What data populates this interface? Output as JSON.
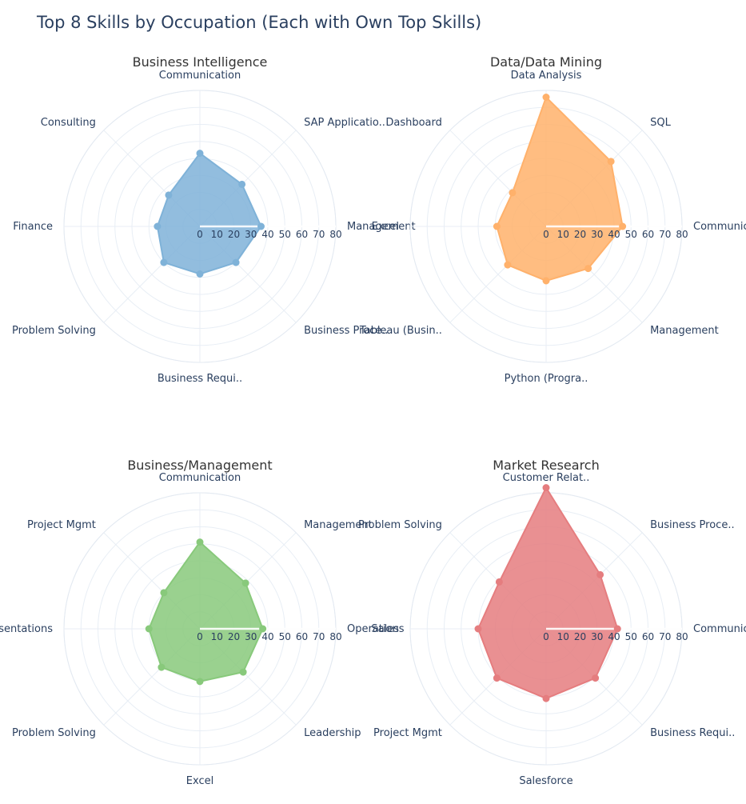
{
  "title": "Top 8 Skills by Occupation (Each with Own Top Skills)",
  "chart_data": [
    {
      "type": "radar",
      "title": "Business Intelligence",
      "color": "#7fb2d8",
      "categories": [
        "Communication",
        "SAP Applicatio..",
        "Management",
        "Business Proce..",
        "Business Requi..",
        "Problem Solving",
        "Finance",
        "Consulting"
      ],
      "values": [
        43,
        35,
        36,
        30,
        28,
        30,
        25,
        26
      ],
      "radial_ticks": [
        0,
        10,
        20,
        30,
        40,
        50,
        60,
        70,
        80
      ],
      "rlim": [
        0,
        80
      ],
      "grid": true
    },
    {
      "type": "radar",
      "title": "Data/Data Mining",
      "color": "#ffb16b",
      "categories": [
        "Data Analysis",
        "SQL",
        "Communication",
        "Management",
        "Python (Progra..",
        "Tableau (Busin..",
        "Excel",
        "Dashboard"
      ],
      "values": [
        76,
        54,
        45,
        35,
        32,
        32,
        29,
        28
      ],
      "radial_ticks": [
        0,
        10,
        20,
        30,
        40,
        50,
        60,
        70,
        80
      ],
      "rlim": [
        0,
        80
      ],
      "grid": true
    },
    {
      "type": "radar",
      "title": "Business/Management",
      "color": "#88c97b",
      "categories": [
        "Communication",
        "Management",
        "Operations",
        "Leadership",
        "Excel",
        "Problem Solving",
        "Presentations",
        "Project Mgmt"
      ],
      "values": [
        51,
        38,
        37,
        36,
        31,
        32,
        30,
        30
      ],
      "radial_ticks": [
        0,
        10,
        20,
        30,
        40,
        50,
        60,
        70,
        80
      ],
      "rlim": [
        0,
        80
      ],
      "grid": true
    },
    {
      "type": "radar",
      "title": "Market Research",
      "color": "#e57d7f",
      "categories": [
        "Customer Relat..",
        "Business Proce..",
        "Communication",
        "Business Requi..",
        "Salesforce",
        "Project Mgmt",
        "Sales",
        "Problem Solving"
      ],
      "values": [
        83,
        45,
        42,
        41,
        41,
        41,
        40,
        39
      ],
      "radial_ticks": [
        0,
        10,
        20,
        30,
        40,
        50,
        60,
        70,
        80
      ],
      "rlim": [
        0,
        80
      ],
      "grid": true
    }
  ]
}
